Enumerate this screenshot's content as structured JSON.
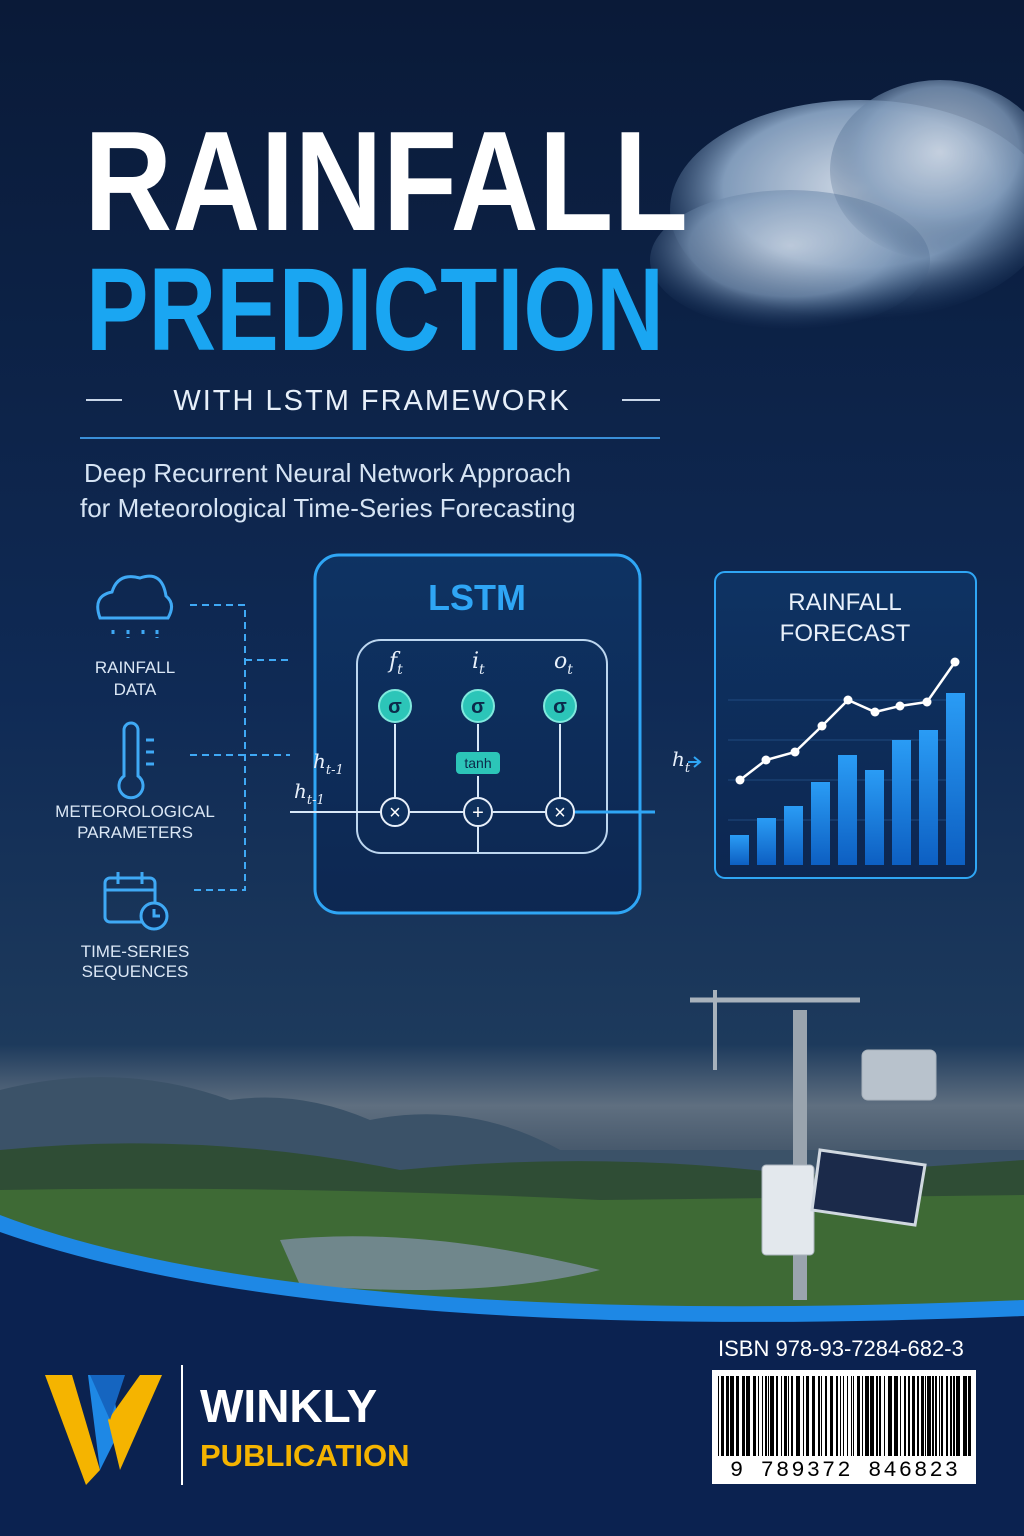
{
  "title": {
    "line1": "RAINFALL",
    "line2": "PREDICTION"
  },
  "subtitle": "WITH LSTM FRAMEWORK",
  "tagline": [
    "Deep Recurrent Neural Network Approach",
    "for Meteorological Time-Series Forecasting"
  ],
  "inputs": [
    {
      "label": [
        "RAINFALL",
        "DATA"
      ]
    },
    {
      "label": [
        "METEOROLOGICAL",
        "PARAMETERS"
      ]
    },
    {
      "label": [
        "TIME-SERIES",
        "SEQUENCES"
      ]
    }
  ],
  "lstm": {
    "title": "LSTM",
    "gates": [
      {
        "symbol": "f",
        "sub": "t"
      },
      {
        "symbol": "i",
        "sub": "t"
      },
      {
        "symbol": "o",
        "sub": "t"
      }
    ],
    "sigma": "σ",
    "tanh": "tanh",
    "multiply": "×",
    "add": "+",
    "hidden_prev": {
      "symbol": "h",
      "sub": "t-1"
    },
    "hidden_out": {
      "symbol": "h",
      "sub": "t"
    }
  },
  "forecast": {
    "title": [
      "RAINFALL",
      "FORECAST"
    ]
  },
  "isbn": "ISBN 978-93-7284-682-3",
  "barcode_digits": "9 789372 846823",
  "publisher": {
    "name": "WINKLY",
    "line2": "PUBLICATION"
  }
}
